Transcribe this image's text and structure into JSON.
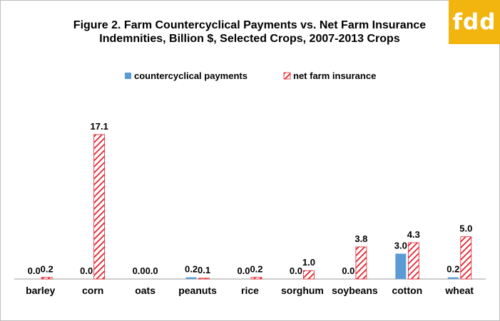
{
  "logo": {
    "text": "fdd"
  },
  "chart_data": {
    "type": "bar",
    "title_lines": [
      "Figure 2. Farm Countercyclical Payments vs. Net Farm Insurance",
      "Indemnities, Billion $, Selected Crops, 2007-2013 Crops"
    ],
    "categories": [
      "barley",
      "corn",
      "oats",
      "peanuts",
      "rice",
      "sorghum",
      "soybeans",
      "cotton",
      "wheat"
    ],
    "series": [
      {
        "name": "countercyclical payments",
        "values": [
          0.0,
          0.0,
          0.0,
          0.2,
          0.0,
          0.0,
          0.0,
          3.0,
          0.2
        ],
        "color": "#5b9bd5",
        "pattern": "solid"
      },
      {
        "name": "net farm insurance",
        "values": [
          0.2,
          17.1,
          0.0,
          0.1,
          0.2,
          1.0,
          3.8,
          4.3,
          5.0
        ],
        "color": "#e0232e",
        "pattern": "diagonal-hatch"
      }
    ],
    "ylim": [
      0,
      17.1
    ],
    "xlabel": "",
    "ylabel": "",
    "legend_position": "top",
    "grid": false
  }
}
